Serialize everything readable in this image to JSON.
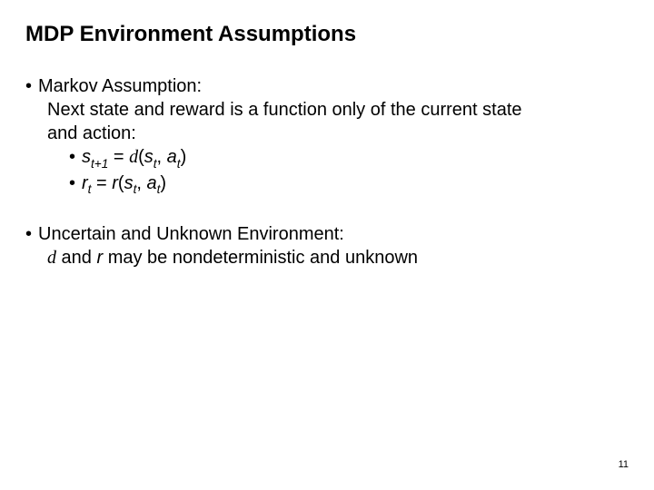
{
  "title": "MDP Environment Assumptions",
  "section1": {
    "heading": "Markov Assumption:",
    "line1": "Next state and reward is a function only of the current state",
    "line2": "and action:",
    "eq1": {
      "lhs_base": "s",
      "lhs_sub": "t+1",
      "equals": " = ",
      "delta": "d",
      "open": "(",
      "arg1_base": "s",
      "arg1_sub": "t",
      "comma": ", ",
      "arg2_base": "a",
      "arg2_sub": "t",
      "close": ")"
    },
    "eq2": {
      "lhs_base": "r",
      "lhs_sub": "t",
      "equals": " = ",
      "fn": "r",
      "open": "(",
      "arg1_base": "s",
      "arg1_sub": "t",
      "comma": ", ",
      "arg2_base": "a",
      "arg2_sub": "t",
      "close": ")"
    }
  },
  "section2": {
    "heading": "Uncertain and Unknown Environment:",
    "line_pre_delta": "",
    "delta": "d",
    "mid": " and ",
    "r": "r",
    "tail": " may be nondeterministic and unknown"
  },
  "bullet_char": "•",
  "page_number": "11",
  "colors": {
    "text": "#000000",
    "background": "#ffffff"
  },
  "fonts": {
    "title_size_pt": 24,
    "body_size_pt": 20,
    "pagenum_size_pt": 11
  }
}
